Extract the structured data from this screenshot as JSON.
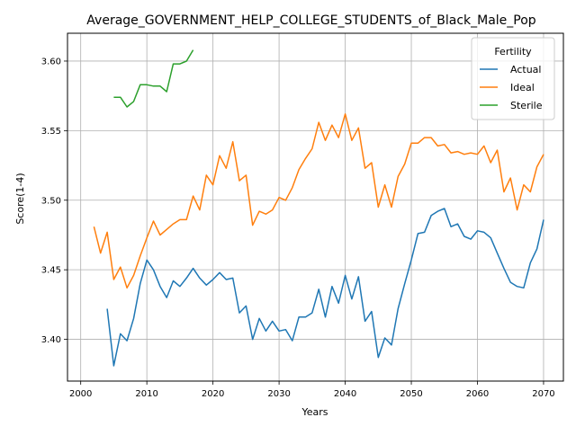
{
  "chart_data": {
    "type": "line",
    "title": "Average_GOVERNMENT_HELP_COLLEGE_STUDENTS_of_Black_Male_Pop",
    "xlabel": "Years",
    "ylabel": "Score(1-4)",
    "xlim": [
      1998,
      2073
    ],
    "ylim": [
      3.37,
      3.62
    ],
    "x_ticks": [
      2000,
      2010,
      2020,
      2030,
      2040,
      2050,
      2060,
      2070
    ],
    "y_ticks": [
      3.4,
      3.45,
      3.5,
      3.55,
      3.6
    ],
    "x_tick_labels": [
      "2000",
      "2010",
      "2020",
      "2030",
      "2040",
      "2050",
      "2060",
      "2070"
    ],
    "y_tick_labels": [
      "3.40",
      "3.45",
      "3.50",
      "3.55",
      "3.60"
    ],
    "grid": true,
    "legend": {
      "title": "Fertility",
      "placement": "top-right"
    },
    "series": [
      {
        "name": "Actual",
        "color": "#1f77b4",
        "x": [
          2004,
          2005,
          2006,
          2007,
          2008,
          2009,
          2010,
          2011,
          2012,
          2013,
          2014,
          2015,
          2016,
          2017,
          2018,
          2019,
          2020,
          2021,
          2022,
          2023,
          2024,
          2025,
          2026,
          2027,
          2028,
          2029,
          2030,
          2031,
          2032,
          2033,
          2034,
          2035,
          2036,
          2037,
          2038,
          2039,
          2040,
          2041,
          2042,
          2043,
          2044,
          2045,
          2046,
          2047,
          2048,
          2049,
          2050,
          2051,
          2052,
          2053,
          2054,
          2055,
          2056,
          2057,
          2058,
          2059,
          2060,
          2061,
          2062,
          2063,
          2064,
          2065,
          2066,
          2067,
          2068,
          2069,
          2070
        ],
        "y": [
          3.422,
          3.381,
          3.404,
          3.399,
          3.415,
          3.44,
          3.457,
          3.45,
          3.438,
          3.43,
          3.442,
          3.438,
          3.444,
          3.451,
          3.444,
          3.439,
          3.443,
          3.448,
          3.443,
          3.444,
          3.419,
          3.424,
          3.4,
          3.415,
          3.406,
          3.413,
          3.406,
          3.407,
          3.399,
          3.416,
          3.416,
          3.419,
          3.436,
          3.416,
          3.438,
          3.426,
          3.446,
          3.429,
          3.445,
          3.413,
          3.42,
          3.387,
          3.401,
          3.396,
          3.422,
          3.44,
          3.457,
          3.476,
          3.477,
          3.489,
          3.492,
          3.494,
          3.481,
          3.483,
          3.474,
          3.472,
          3.478,
          3.477,
          3.473,
          3.462,
          3.451,
          3.441,
          3.438,
          3.437,
          3.455,
          3.465,
          3.486
        ]
      },
      {
        "name": "Ideal",
        "color": "#ff7f0e",
        "x": [
          2002,
          2003,
          2004,
          2005,
          2006,
          2007,
          2008,
          2009,
          2010,
          2011,
          2012,
          2013,
          2014,
          2015,
          2016,
          2017,
          2018,
          2019,
          2020,
          2021,
          2022,
          2023,
          2024,
          2025,
          2026,
          2027,
          2028,
          2029,
          2030,
          2031,
          2032,
          2033,
          2034,
          2035,
          2036,
          2037,
          2038,
          2039,
          2040,
          2041,
          2042,
          2043,
          2044,
          2045,
          2046,
          2047,
          2048,
          2049,
          2050,
          2051,
          2052,
          2053,
          2054,
          2055,
          2056,
          2057,
          2058,
          2059,
          2060,
          2061,
          2062,
          2063,
          2064,
          2065,
          2066,
          2067,
          2068,
          2069,
          2070
        ],
        "y": [
          3.481,
          3.462,
          3.477,
          3.443,
          3.452,
          3.437,
          3.446,
          3.46,
          3.473,
          3.485,
          3.475,
          3.479,
          3.483,
          3.486,
          3.486,
          3.503,
          3.493,
          3.518,
          3.511,
          3.532,
          3.523,
          3.542,
          3.514,
          3.518,
          3.482,
          3.492,
          3.49,
          3.493,
          3.502,
          3.5,
          3.509,
          3.522,
          3.53,
          3.537,
          3.556,
          3.543,
          3.554,
          3.545,
          3.562,
          3.543,
          3.552,
          3.523,
          3.527,
          3.495,
          3.511,
          3.495,
          3.517,
          3.526,
          3.541,
          3.541,
          3.545,
          3.545,
          3.539,
          3.54,
          3.534,
          3.535,
          3.533,
          3.534,
          3.533,
          3.539,
          3.527,
          3.536,
          3.506,
          3.516,
          3.493,
          3.511,
          3.506,
          3.524,
          3.533
        ]
      },
      {
        "name": "Sterile",
        "color": "#2ca02c",
        "x": [
          2005,
          2006,
          2007,
          2008,
          2009,
          2010,
          2011,
          2012,
          2013,
          2014,
          2015,
          2016,
          2017
        ],
        "y": [
          3.574,
          3.574,
          3.567,
          3.571,
          3.583,
          3.583,
          3.582,
          3.582,
          3.578,
          3.598,
          3.598,
          3.6,
          3.608
        ]
      }
    ]
  }
}
